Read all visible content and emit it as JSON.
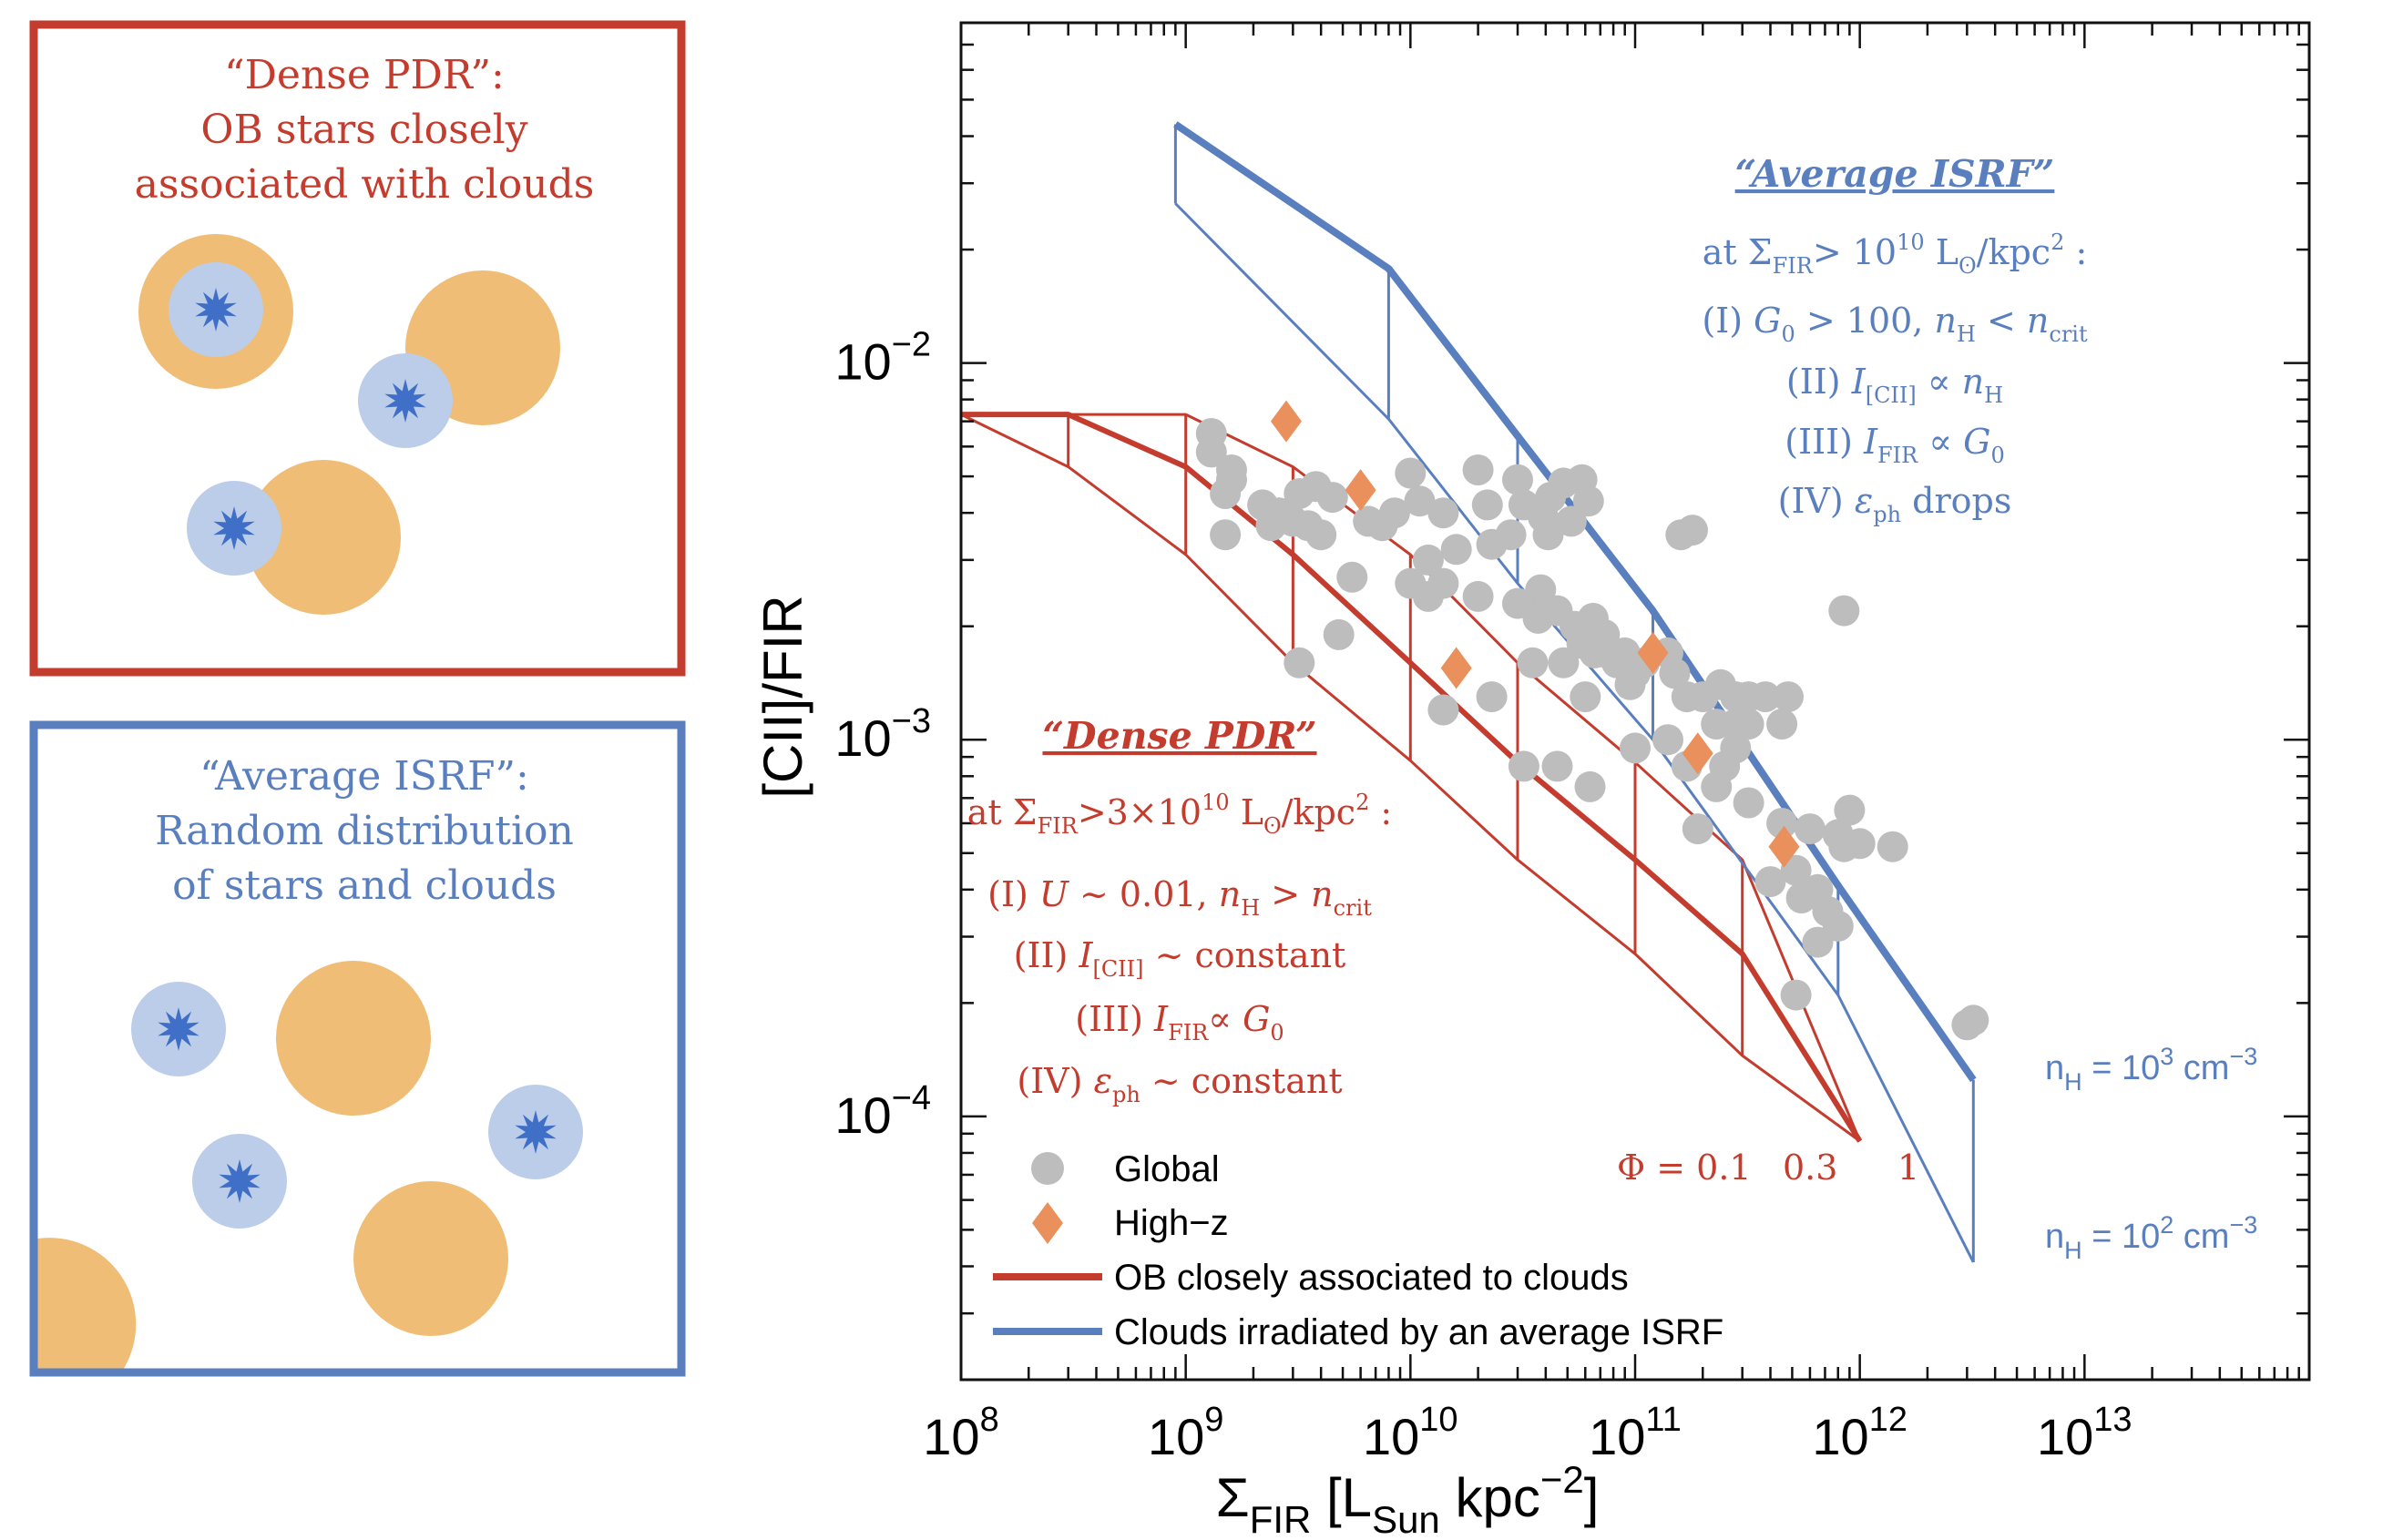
{
  "colors": {
    "dense": "#c43c2e",
    "isrf": "#5a7fbf",
    "cloud": "#efbd75",
    "halo": "#bccdea",
    "star": "#3f6fc6",
    "global_pt": "#bdbdbd",
    "highz_pt": "#e9905c"
  },
  "panels": {
    "dense": {
      "title_lines": [
        "“Dense PDR”:",
        "OB stars closely",
        "associated with clouds"
      ]
    },
    "isrf": {
      "title_lines": [
        "“Average ISRF”:",
        "Random distribution",
        "of stars and clouds"
      ]
    }
  },
  "annotations": {
    "isrf": {
      "heading": "“Average ISRF”",
      "cond": {
        "pre": "at Σ",
        "sub": "FIR",
        "mid": "> 10",
        "sup": "10",
        "unit": " L",
        "usub": "ʘ",
        "post": "/kpc",
        "psup": "2",
        "end": " :"
      },
      "items": [
        {
          "num": "(I) ",
          "a": "G",
          "as": "0",
          "b": " > 100, ",
          "c": "n",
          "cs": "H",
          "d": " < ",
          "e": "n",
          "es": "crit"
        },
        {
          "num": "(II) ",
          "a": "I",
          "as": "[CII]",
          "b": " ∝ ",
          "c": "n",
          "cs": "H"
        },
        {
          "num": "(III) ",
          "a": "I",
          "as": "FIR",
          "b": " ∝ ",
          "c": "G",
          "cs": "0"
        },
        {
          "num": "(IV) ",
          "a": "ε",
          "as": "ph",
          "b": " drops"
        }
      ]
    },
    "dense": {
      "heading": "“Dense PDR”",
      "cond": {
        "pre": "at Σ",
        "sub": "FIR",
        "mid": ">3×10",
        "sup": "10",
        "unit": " L",
        "usub": "ʘ",
        "post": "/kpc",
        "psup": "2",
        "end": " :"
      },
      "items": [
        {
          "num": "(I) ",
          "a": "U",
          "as": "",
          "b": " ~ 0.01, ",
          "c": "n",
          "cs": "H",
          "d": " > ",
          "e": "n",
          "es": "crit"
        },
        {
          "num": "(II) ",
          "a": "I",
          "as": "[CII]",
          "b": " ~ constant"
        },
        {
          "num": "(III) ",
          "a": "I",
          "as": "FIR",
          "b": "∝ ",
          "c": "G",
          "cs": "0"
        },
        {
          "num": "(IV) ",
          "a": "ε",
          "as": "ph",
          "b": " ~ constant"
        }
      ]
    },
    "phi_labels": [
      "Φ = 0.1",
      "0.3",
      "1"
    ],
    "nh_labels": [
      {
        "pre": "n",
        "sub": "H",
        "mid": " = 10",
        "sup": "3",
        "unit": " cm",
        "usup": "−3"
      },
      {
        "pre": "n",
        "sub": "H",
        "mid": " = 10",
        "sup": "2",
        "unit": " cm",
        "usup": "−3"
      }
    ]
  },
  "chart_data": {
    "type": "scatter",
    "x_scale": "log",
    "y_scale": "log",
    "xlim": [
      100000000.0,
      100000000000000.0
    ],
    "ylim": [
      2e-05,
      0.08
    ],
    "xlabel": {
      "main": "Σ",
      "sub": "FIR",
      "rest": " [L",
      "sub2": "Sun",
      "rest2": " kpc",
      "sup": "−2",
      "end": "]"
    },
    "ylabel": "[CII]/FIR",
    "x_ticks": [
      {
        "value": 100000000.0,
        "base": "10",
        "exp": "8"
      },
      {
        "value": 1000000000.0,
        "base": "10",
        "exp": "9"
      },
      {
        "value": 10000000000.0,
        "base": "10",
        "exp": "10"
      },
      {
        "value": 100000000000.0,
        "base": "10",
        "exp": "11"
      },
      {
        "value": 1000000000000.0,
        "base": "10",
        "exp": "12"
      },
      {
        "value": 10000000000000.0,
        "base": "10",
        "exp": "13"
      }
    ],
    "y_ticks": [
      {
        "value": 0.01,
        "base": "10",
        "exp": "−2"
      },
      {
        "value": 0.001,
        "base": "10",
        "exp": "−3"
      },
      {
        "value": 0.0001,
        "base": "10",
        "exp": "−4"
      }
    ],
    "legend": {
      "position": "bottom-left",
      "entries": [
        {
          "label": "Global",
          "marker": "circle"
        },
        {
          "label": "High−z",
          "marker": "diamond"
        },
        {
          "label": "OB closely associated to clouds",
          "marker": "line-red"
        },
        {
          "label": "Clouds irradiated by an average ISRF",
          "marker": "line-blue"
        }
      ]
    },
    "global": [
      [
        1300000000.0,
        0.0065
      ],
      [
        1300000000.0,
        0.0058
      ],
      [
        1600000000.0,
        0.0052
      ],
      [
        1500000000.0,
        0.0045
      ],
      [
        1600000000.0,
        0.0049
      ],
      [
        2200000000.0,
        0.0042
      ],
      [
        2600000000.0,
        0.004
      ],
      [
        3200000000.0,
        0.0045
      ],
      [
        3800000000.0,
        0.0047
      ],
      [
        4500000000.0,
        0.0044
      ],
      [
        3000000000.0,
        0.0038
      ],
      [
        3500000000.0,
        0.0037
      ],
      [
        4000000000.0,
        0.0035
      ],
      [
        2600000000.0,
        0.004
      ],
      [
        2400000000.0,
        0.0037
      ],
      [
        1500000000.0,
        0.0035
      ],
      [
        7500000000.0,
        0.0037
      ],
      [
        8500000000.0,
        0.004
      ],
      [
        6500000000.0,
        0.0038
      ],
      [
        11000000000.0,
        0.0043
      ],
      [
        10000000000.0,
        0.0051
      ],
      [
        14000000000.0,
        0.004
      ],
      [
        22000000000.0,
        0.0042
      ],
      [
        20000000000.0,
        0.0052
      ],
      [
        30000000000.0,
        0.0049
      ],
      [
        32000000000.0,
        0.0042
      ],
      [
        42000000000.0,
        0.0044
      ],
      [
        48000000000.0,
        0.0048
      ],
      [
        58000000000.0,
        0.0049
      ],
      [
        62000000000.0,
        0.0043
      ],
      [
        39000000000.0,
        0.0039
      ],
      [
        41000000000.0,
        0.0035
      ],
      [
        52000000000.0,
        0.0038
      ],
      [
        28000000000.0,
        0.0035
      ],
      [
        23000000000.0,
        0.0033
      ],
      [
        16000000000.0,
        0.0032
      ],
      [
        12000000000.0,
        0.003
      ],
      [
        10000000000.0,
        0.0026
      ],
      [
        12000000000.0,
        0.0024
      ],
      [
        14000000000.0,
        0.0026
      ],
      [
        5500000000.0,
        0.0027
      ],
      [
        20000000000.0,
        0.0024
      ],
      [
        30000000000.0,
        0.0023
      ],
      [
        38000000000.0,
        0.0025
      ],
      [
        37000000000.0,
        0.0021
      ],
      [
        45000000000.0,
        0.0022
      ],
      [
        54000000000.0,
        0.002
      ],
      [
        65000000000.0,
        0.0021
      ],
      [
        58000000000.0,
        0.0018
      ],
      [
        66000000000.0,
        0.0017
      ],
      [
        75000000000.0,
        0.0017
      ],
      [
        73000000000.0,
        0.0019
      ],
      [
        83000000000.0,
        0.0016
      ],
      [
        90000000000.0,
        0.0017
      ],
      [
        100000000000.0,
        0.0015
      ],
      [
        95000000000.0,
        0.0014
      ],
      [
        110000000000.0,
        0.0016
      ],
      [
        140000000000.0,
        0.0017
      ],
      [
        150000000000.0,
        0.0015
      ],
      [
        170000000000.0,
        0.0013
      ],
      [
        200000000000.0,
        0.0013
      ],
      [
        240000000000.0,
        0.0014
      ],
      [
        280000000000.0,
        0.0013
      ],
      [
        320000000000.0,
        0.0013
      ],
      [
        380000000000.0,
        0.0013
      ],
      [
        230000000000.0,
        0.0011
      ],
      [
        280000000000.0,
        0.0011
      ],
      [
        320000000000.0,
        0.0011
      ],
      [
        450000000000.0,
        0.0011
      ],
      [
        480000000000.0,
        0.0013
      ],
      [
        35000000000.0,
        0.0016
      ],
      [
        48000000000.0,
        0.0016
      ],
      [
        60000000000.0,
        0.0013
      ],
      [
        23000000000.0,
        0.0013
      ],
      [
        14000000000.0,
        0.0012
      ],
      [
        3200000000.0,
        0.0016
      ],
      [
        4800000000.0,
        0.0019
      ],
      [
        32000000000.0,
        0.00085
      ],
      [
        45000000000.0,
        0.00085
      ],
      [
        63000000000.0,
        0.00075
      ],
      [
        100000000000.0,
        0.00095
      ],
      [
        140000000000.0,
        0.001
      ],
      [
        170000000000.0,
        0.00085
      ],
      [
        250000000000.0,
        0.00085
      ],
      [
        280000000000.0,
        0.00095
      ],
      [
        230000000000.0,
        0.00075
      ],
      [
        190000000000.0,
        0.00058
      ],
      [
        320000000000.0,
        0.00068
      ],
      [
        450000000000.0,
        0.0006
      ],
      [
        600000000000.0,
        0.00058
      ],
      [
        800000000000.0,
        0.00056
      ],
      [
        850000000000.0,
        0.00052
      ],
      [
        900000000000.0,
        0.00065
      ],
      [
        1400000000000.0,
        0.00052
      ],
      [
        1000000000000.0,
        0.00053
      ],
      [
        400000000000.0,
        0.00042
      ],
      [
        520000000000.0,
        0.00045
      ],
      [
        550000000000.0,
        0.00038
      ],
      [
        650000000000.0,
        0.0004
      ],
      [
        720000000000.0,
        0.00035
      ],
      [
        650000000000.0,
        0.00029
      ],
      [
        800000000000.0,
        0.00032
      ],
      [
        520000000000.0,
        0.00021
      ],
      [
        3000000000000.0,
        0.000175
      ],
      [
        3200000000000.0,
        0.00018
      ],
      [
        160000000000.0,
        0.0035
      ],
      [
        180000000000.0,
        0.0036
      ],
      [
        850000000000.0,
        0.0022
      ]
    ],
    "highz": [
      [
        2800000000.0,
        0.007
      ],
      [
        6000000000.0,
        0.0046
      ],
      [
        16000000000.0,
        0.00155
      ],
      [
        120000000000.0,
        0.0017
      ],
      [
        190000000000.0,
        0.00092
      ],
      [
        460000000000.0,
        0.00052
      ]
    ],
    "dense_grid": {
      "phi": [
        0.1,
        0.3,
        1
      ],
      "x": [
        [
          100000000.0,
          300000000.0,
          1000000000.0,
          3000000000.0,
          10000000000.0,
          30000000000.0,
          100000000000.0,
          300000000000.0,
          1000000000000.0
        ],
        [
          100000000.0,
          300000000.0,
          1000000000.0,
          3000000000.0,
          10000000000.0,
          30000000000.0,
          100000000000.0,
          300000000000.0,
          1000000000000.0
        ],
        [
          100000000.0,
          300000000.0,
          1000000000.0,
          3000000000.0,
          10000000000.0,
          30000000000.0,
          100000000000.0,
          300000000000.0,
          1000000000000.0
        ]
      ],
      "y": [
        [
          0.0073,
          0.0053,
          0.0031,
          0.0016,
          0.00088,
          0.00048,
          0.00027,
          0.000145,
          8.6e-05
        ],
        [
          0.0073,
          0.0073,
          0.0053,
          0.0031,
          0.0016,
          0.00087,
          0.00048,
          0.00027,
          8.6e-05
        ],
        [
          0.0073,
          0.0073,
          0.0073,
          0.0053,
          0.0031,
          0.0016,
          0.00087,
          0.00048,
          8.6e-05
        ]
      ]
    },
    "isrf_grid": {
      "nh": [
        100,
        1000
      ],
      "x": [
        900000000.0,
        8000000000.0,
        30000000000.0,
        120000000000.0,
        800000000000.0,
        3200000000000.0
      ],
      "y_low": [
        0.0265,
        0.0071,
        0.0026,
        0.001,
        0.00021,
        4.1e-05
      ],
      "y_high": [
        0.043,
        0.0178,
        0.0064,
        0.0022,
        0.00041,
        0.000125
      ]
    }
  }
}
